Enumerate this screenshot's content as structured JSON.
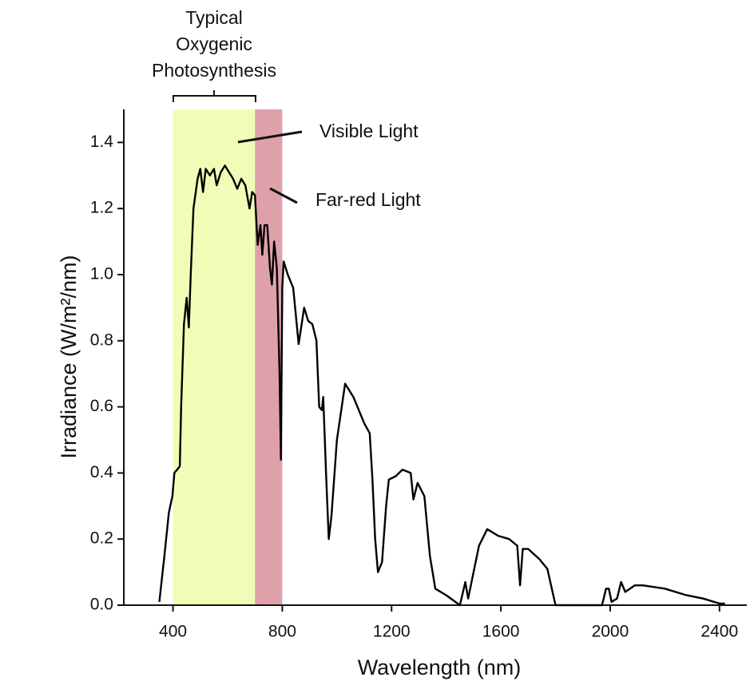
{
  "chart_data": {
    "type": "line",
    "xlabel": "Wavelength (nm)",
    "ylabel": "Irradiance (W/m²/nm)",
    "annotations": {
      "photosynthesis": [
        "Typical",
        "Oxygenic",
        "Photosynthesis"
      ],
      "visible": "Visible Light",
      "far_red": "Far-red Light"
    },
    "shaded_regions": [
      {
        "x": [
          400,
          700
        ],
        "color": "#f1fdb6"
      },
      {
        "x": [
          700,
          800
        ],
        "color": "#dfa1a9"
      }
    ],
    "xlim": [
      220,
      2500
    ],
    "ylim": [
      0,
      1.5
    ],
    "xticks": [
      400,
      800,
      1200,
      1600,
      2000,
      2400
    ],
    "yticks": [
      {
        "value": 0,
        "label": "0.0"
      },
      0.2,
      0.4,
      0.6,
      0.8,
      {
        "value": 1,
        "label": "1.0"
      },
      1.2,
      1.4
    ],
    "grid": false,
    "series": [
      {
        "color": "#000000",
        "x": [
          350,
          370,
          385,
          398,
          405,
          415,
          425,
          430,
          440,
          450,
          458,
          465,
          475,
          490,
          500,
          510,
          520,
          535,
          550,
          560,
          575,
          590,
          605,
          620,
          635,
          650,
          665,
          680,
          690,
          700,
          710,
          720,
          727,
          735,
          745,
          755,
          762,
          770,
          780,
          790,
          795,
          800,
          805,
          820,
          840,
          860,
          880,
          895,
          910,
          925,
          935,
          945,
          950,
          960,
          970,
          980,
          1000,
          1030,
          1060,
          1100,
          1120,
          1130,
          1140,
          1150,
          1165,
          1180,
          1190,
          1215,
          1240,
          1270,
          1280,
          1295,
          1320,
          1340,
          1360,
          1400,
          1450,
          1470,
          1480,
          1500,
          1520,
          1550,
          1590,
          1630,
          1660,
          1670,
          1680,
          1700,
          1740,
          1770,
          1800,
          1900,
          1970,
          1985,
          1995,
          2005,
          2025,
          2040,
          2055,
          2090,
          2120,
          2200,
          2280,
          2340,
          2400,
          2420
        ],
        "values": [
          0.01,
          0.16,
          0.28,
          0.33,
          0.4,
          0.41,
          0.42,
          0.6,
          0.85,
          0.93,
          0.84,
          1.0,
          1.2,
          1.29,
          1.32,
          1.25,
          1.32,
          1.3,
          1.32,
          1.27,
          1.31,
          1.33,
          1.31,
          1.29,
          1.26,
          1.29,
          1.27,
          1.2,
          1.25,
          1.24,
          1.09,
          1.15,
          1.06,
          1.15,
          1.15,
          1.02,
          0.97,
          1.1,
          1.02,
          0.7,
          0.44,
          0.96,
          1.04,
          1.0,
          0.96,
          0.79,
          0.9,
          0.86,
          0.85,
          0.8,
          0.6,
          0.59,
          0.63,
          0.4,
          0.2,
          0.27,
          0.5,
          0.67,
          0.63,
          0.55,
          0.52,
          0.38,
          0.2,
          0.1,
          0.13,
          0.3,
          0.38,
          0.39,
          0.41,
          0.4,
          0.32,
          0.37,
          0.33,
          0.15,
          0.05,
          0.03,
          0.0,
          0.07,
          0.02,
          0.1,
          0.18,
          0.23,
          0.21,
          0.2,
          0.18,
          0.06,
          0.17,
          0.17,
          0.14,
          0.11,
          0.0,
          0.0,
          0.0,
          0.05,
          0.05,
          0.01,
          0.02,
          0.07,
          0.04,
          0.06,
          0.06,
          0.05,
          0.03,
          0.02,
          0.005,
          0.005
        ]
      }
    ]
  }
}
